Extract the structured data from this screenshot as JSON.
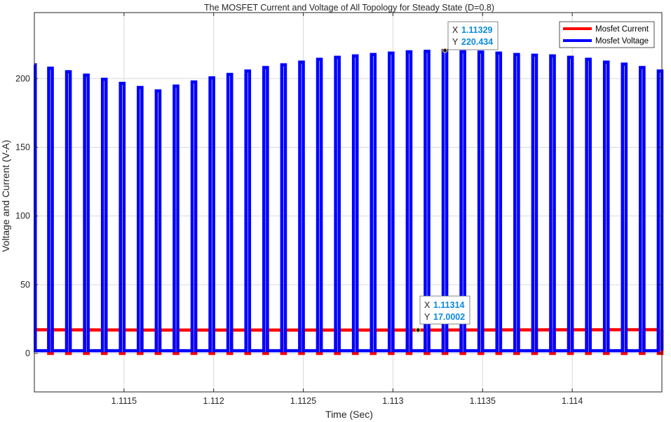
{
  "chart_data": {
    "type": "line",
    "title": "The MOSFET Current and Voltage of All Topology for Steady State (D=0.8)",
    "xlabel": "Time (Sec)",
    "ylabel": "Voltage and Current (V-A)",
    "xlim": [
      1.111,
      1.1145
    ],
    "ylim": [
      -28,
      248
    ],
    "grid": true,
    "legend_position": "top-right",
    "x_ticks": [
      1.1115,
      1.112,
      1.1125,
      1.113,
      1.1135,
      1.114
    ],
    "x_tick_labels": [
      "1.1115",
      "1.112",
      "1.1125",
      "1.113",
      "1.1135",
      "1.114"
    ],
    "y_ticks": [
      0,
      50,
      100,
      150,
      200
    ],
    "y_tick_labels": [
      "0",
      "50",
      "100",
      "150",
      "200"
    ],
    "switching": {
      "period": 0.0001,
      "off_duration": 2e-05,
      "first_pulse_start": 1.11107,
      "last_pulse_start": 1.11447,
      "voltage_low": 2,
      "current_low": 0
    },
    "series": [
      {
        "name": "Mosfet Current",
        "color": "#ff0000",
        "plateau": 17,
        "plateau_points": [
          {
            "x": 1.111,
            "y": 17.2
          },
          {
            "x": 1.1117,
            "y": 17.0
          },
          {
            "x": 1.11314,
            "y": 17.0002
          },
          {
            "x": 1.1145,
            "y": 17.3
          }
        ]
      },
      {
        "name": "Mosfet Voltage",
        "color": "#0000ff",
        "pulse_peaks": [
          {
            "x": 1.11108,
            "y": 207.5
          },
          {
            "x": 1.11118,
            "y": 205
          },
          {
            "x": 1.11128,
            "y": 202.5
          },
          {
            "x": 1.11138,
            "y": 199.5
          },
          {
            "x": 1.11148,
            "y": 196.5
          },
          {
            "x": 1.11158,
            "y": 193.5
          },
          {
            "x": 1.11168,
            "y": 191
          },
          {
            "x": 1.11178,
            "y": 194.5
          },
          {
            "x": 1.11188,
            "y": 197.5
          },
          {
            "x": 1.11198,
            "y": 200.5
          },
          {
            "x": 1.11208,
            "y": 203
          },
          {
            "x": 1.11218,
            "y": 205.5
          },
          {
            "x": 1.11228,
            "y": 208
          },
          {
            "x": 1.11238,
            "y": 210
          },
          {
            "x": 1.11248,
            "y": 212
          },
          {
            "x": 1.11258,
            "y": 214
          },
          {
            "x": 1.11268,
            "y": 215.5
          },
          {
            "x": 1.11278,
            "y": 216.5
          },
          {
            "x": 1.11288,
            "y": 217.5
          },
          {
            "x": 1.11298,
            "y": 218.5
          },
          {
            "x": 1.11308,
            "y": 219.5
          },
          {
            "x": 1.11318,
            "y": 219.8
          },
          {
            "x": 1.11328,
            "y": 220.434
          },
          {
            "x": 1.11338,
            "y": 219.5
          },
          {
            "x": 1.11348,
            "y": 219.3
          },
          {
            "x": 1.11358,
            "y": 218.5
          },
          {
            "x": 1.11368,
            "y": 217.5
          },
          {
            "x": 1.11378,
            "y": 217
          },
          {
            "x": 1.11388,
            "y": 216.5
          },
          {
            "x": 1.11398,
            "y": 215.5
          },
          {
            "x": 1.11408,
            "y": 214
          },
          {
            "x": 1.11418,
            "y": 212
          },
          {
            "x": 1.11428,
            "y": 210.5
          },
          {
            "x": 1.11438,
            "y": 208
          },
          {
            "x": 1.11448,
            "y": 205.5
          }
        ]
      }
    ],
    "datatips": [
      {
        "x_label": "X",
        "x_value": "1.11329",
        "y_label": "Y",
        "y_value": "220.434",
        "x": 1.11329,
        "y": 220.434
      },
      {
        "x_label": "X",
        "x_value": "1.11314",
        "y_label": "Y",
        "y_value": "17.0002",
        "x": 1.11314,
        "y": 17.0002
      }
    ]
  }
}
